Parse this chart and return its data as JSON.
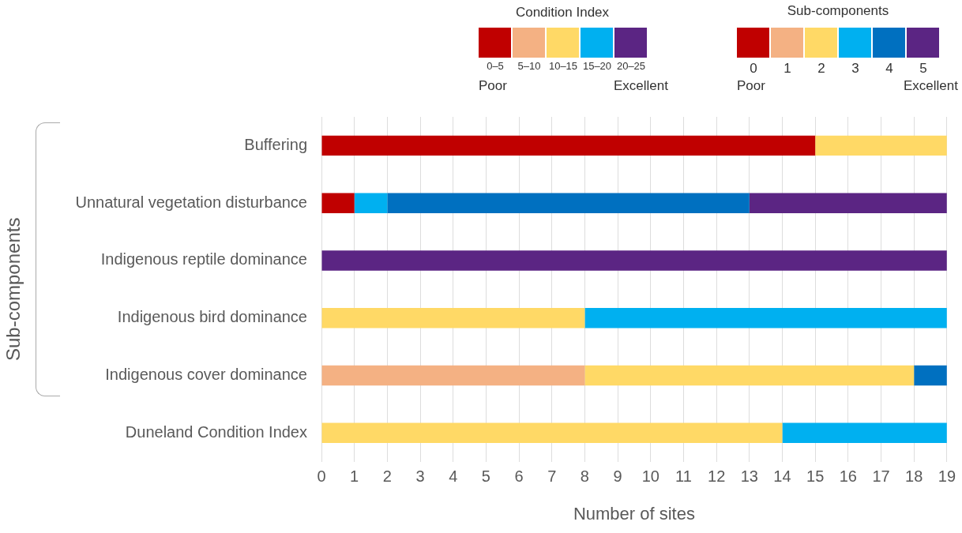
{
  "chart_data": {
    "type": "bar",
    "orientation": "horizontal",
    "stacked": true,
    "categories": [
      "Buffering",
      "Unnatural vegetation disturbance",
      "Indigenous reptile dominance",
      "Indigenous bird dominance",
      "Indigenous cover dominance",
      "Duneland Condition Index"
    ],
    "series": [
      {
        "name": "0",
        "color": "#c00000",
        "values": [
          15,
          1,
          0,
          0,
          0,
          0
        ]
      },
      {
        "name": "1",
        "color": "#f4b183",
        "values": [
          0,
          0,
          0,
          0,
          8,
          0
        ]
      },
      {
        "name": "2",
        "color": "#ffd966",
        "values": [
          4,
          0,
          0,
          8,
          10,
          14
        ]
      },
      {
        "name": "3",
        "color": "#00b0f0",
        "values": [
          0,
          1,
          0,
          11,
          0,
          5
        ]
      },
      {
        "name": "4",
        "color": "#0070c0",
        "values": [
          0,
          11,
          0,
          0,
          1,
          0
        ]
      },
      {
        "name": "5",
        "color": "#5b2583",
        "values": [
          0,
          6,
          19,
          0,
          0,
          0
        ]
      }
    ],
    "legend": "top right",
    "legend_title": "Sub-components",
    "xlabel": "Number of sites",
    "ylabel": "Sub-components",
    "xlim": [
      0,
      19
    ],
    "xticks": [
      0,
      1,
      2,
      3,
      4,
      5,
      6,
      7,
      8,
      9,
      10,
      11,
      12,
      13,
      14,
      15,
      16,
      17,
      18,
      19
    ],
    "grid": "x",
    "annotations": [
      "Condition Index",
      "0–5",
      "5–10",
      "10–15",
      "15–20",
      "20–25",
      "Poor",
      "Excellent",
      "Poor",
      "Excellent"
    ]
  }
}
